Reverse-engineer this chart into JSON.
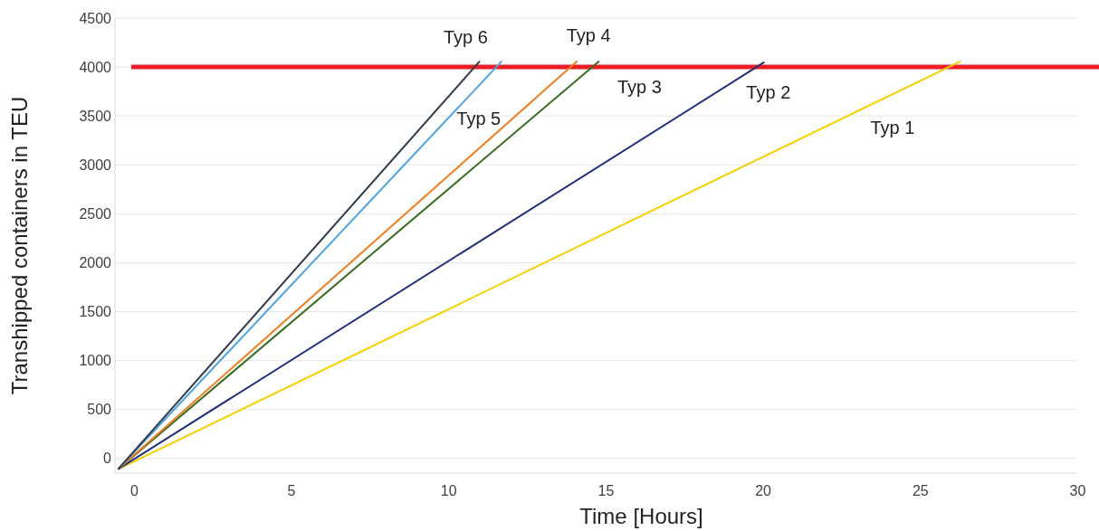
{
  "chart_data": {
    "type": "line",
    "xlabel": "Time [Hours]",
    "ylabel": "Transhipped containers in TEU",
    "xlim": [
      -0.6,
      30
    ],
    "ylim": [
      -150,
      4500
    ],
    "xticks": [
      0,
      5,
      10,
      15,
      20,
      25,
      30
    ],
    "yticks": [
      0,
      500,
      1000,
      1500,
      2000,
      2500,
      3000,
      3500,
      4000,
      4500
    ],
    "grid": "y",
    "legend": false,
    "marker": "none",
    "line_style": "solid",
    "series": [
      {
        "name": "Typ 1",
        "color": "#f5d000",
        "x": [
          -0.5,
          26.3
        ],
        "values": [
          -110,
          4060
        ]
      },
      {
        "name": "Typ 2",
        "color": "#1f2d7a",
        "x": [
          -0.5,
          20.05
        ],
        "values": [
          -110,
          4050
        ]
      },
      {
        "name": "Typ 3",
        "color": "#3a6b1f",
        "x": [
          -0.5,
          14.8
        ],
        "values": [
          -110,
          4060
        ]
      },
      {
        "name": "Typ 4",
        "color": "#f07d20",
        "x": [
          -0.5,
          14.1
        ],
        "values": [
          -110,
          4060
        ]
      },
      {
        "name": "Typ 5",
        "color": "#4ea3e0",
        "x": [
          -0.5,
          11.7
        ],
        "values": [
          -110,
          4060
        ]
      },
      {
        "name": "Typ 6",
        "color": "#2e3a4a",
        "x": [
          -0.5,
          11.0
        ],
        "values": [
          -110,
          4060
        ]
      }
    ],
    "ref_lines": [
      {
        "axis": "y",
        "value": 4000,
        "color": "#ee1c25"
      }
    ]
  }
}
